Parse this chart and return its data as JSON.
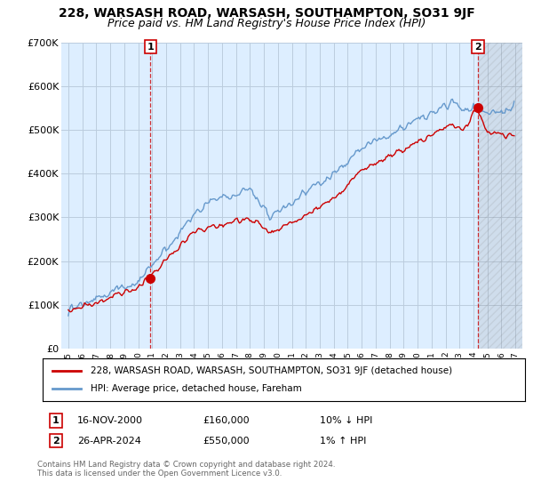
{
  "title": "228, WARSASH ROAD, WARSASH, SOUTHAMPTON, SO31 9JF",
  "subtitle": "Price paid vs. HM Land Registry's House Price Index (HPI)",
  "red_label": "228, WARSASH ROAD, WARSASH, SOUTHAMPTON, SO31 9JF (detached house)",
  "blue_label": "HPI: Average price, detached house, Fareham",
  "annotation1": {
    "num": "1",
    "date": "16-NOV-2000",
    "price": "£160,000",
    "hpi": "10% ↓ HPI"
  },
  "annotation2": {
    "num": "2",
    "date": "26-APR-2024",
    "price": "£550,000",
    "hpi": "1% ↑ HPI"
  },
  "footer": "Contains HM Land Registry data © Crown copyright and database right 2024.\nThis data is licensed under the Open Government Licence v3.0.",
  "ylim": [
    0,
    700000
  ],
  "yticks": [
    0,
    100000,
    200000,
    300000,
    400000,
    500000,
    600000,
    700000
  ],
  "ytick_labels": [
    "£0",
    "£100K",
    "£200K",
    "£300K",
    "£400K",
    "£500K",
    "£600K",
    "£700K"
  ],
  "background_color": "#ffffff",
  "plot_bg_color": "#ddeeff",
  "grid_color": "#bbccdd",
  "red_color": "#cc0000",
  "blue_color": "#6699cc",
  "title_fontsize": 10,
  "subtitle_fontsize": 9,
  "point1_x": 2000.88,
  "point1_y": 160000,
  "point2_x": 2024.32,
  "point2_y": 550000,
  "xmin": 1994.5,
  "xmax": 2027.5
}
